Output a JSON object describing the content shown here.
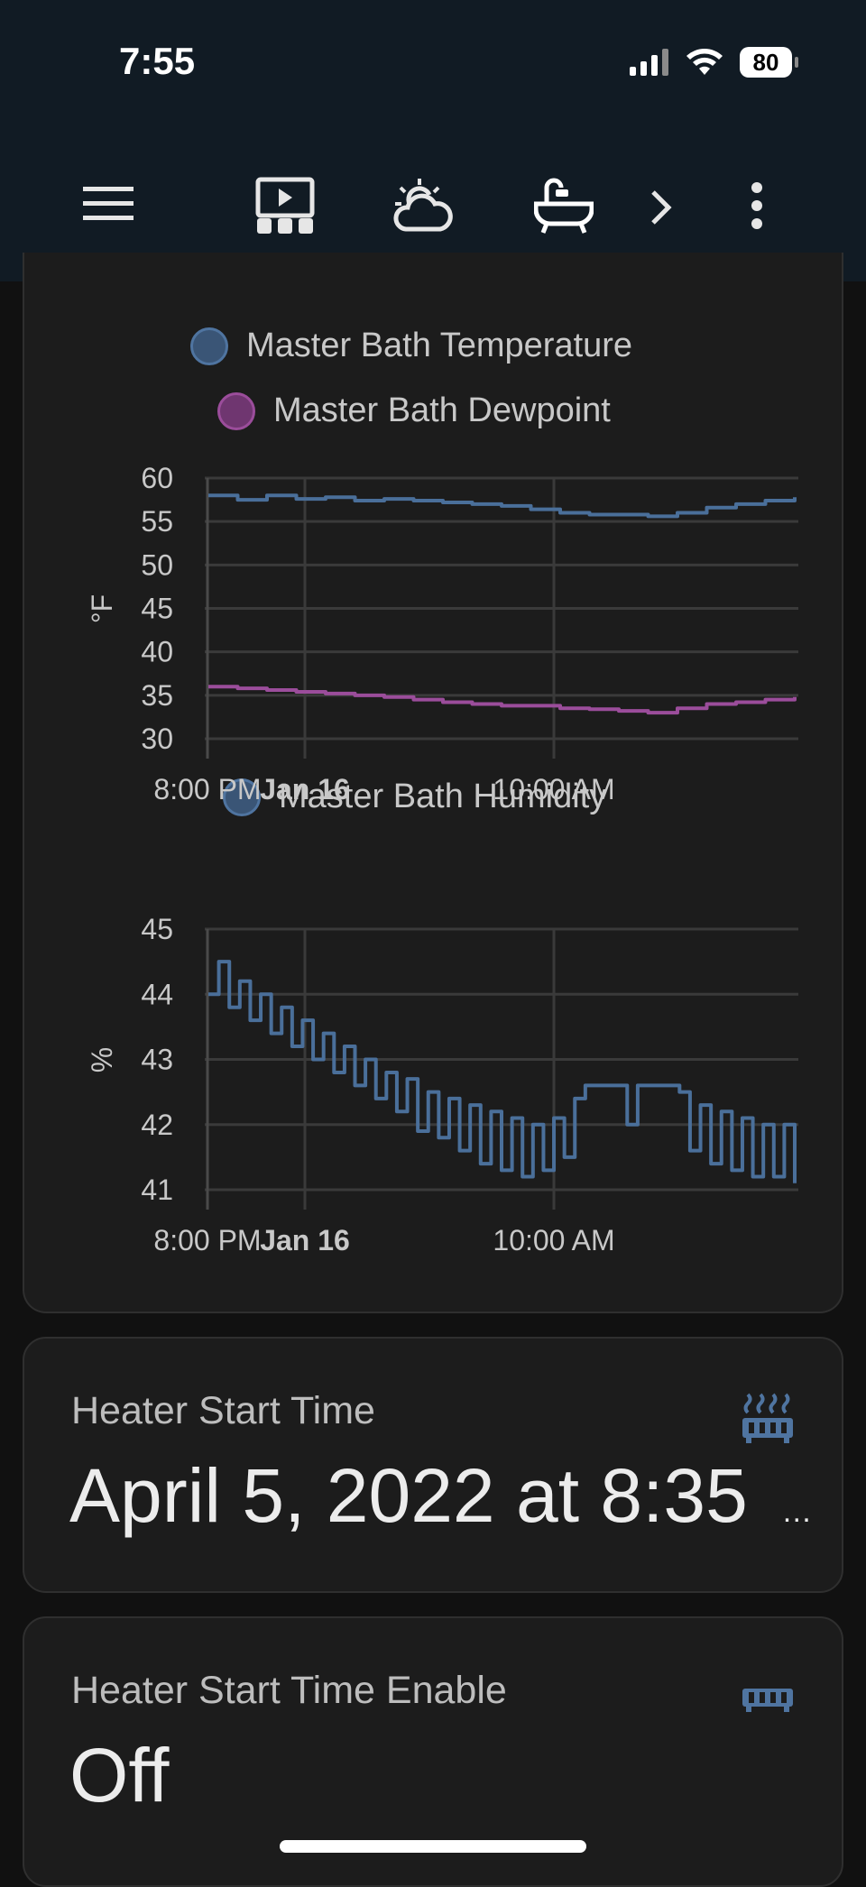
{
  "status_bar": {
    "time": "7:55",
    "battery": "80"
  },
  "toolbar": {
    "icons": [
      "menu-icon",
      "media-icon",
      "weather-icon",
      "bathtub-icon",
      "chevron-right-icon",
      "more-vert-icon"
    ]
  },
  "colors": {
    "temperature": "#4a6f9a",
    "dewpoint": "#9b4d9b",
    "humidity": "#4a6f9a"
  },
  "chart_data": [
    {
      "type": "line",
      "legend": [
        "Master Bath Temperature",
        "Master Bath Dewpoint"
      ],
      "ylabel": "°F",
      "ylim": [
        30,
        60
      ],
      "yticks": [
        "60",
        "55",
        "50",
        "45",
        "40",
        "35",
        "30"
      ],
      "xticks": [
        "8:00 PM",
        "Jan 16",
        "10:00 AM"
      ],
      "series": [
        {
          "name": "Master Bath Temperature",
          "values": [
            58,
            57.5,
            58,
            57.6,
            57.8,
            57.4,
            57.6,
            57.4,
            57.2,
            57,
            56.8,
            56.4,
            56,
            55.8,
            55.8,
            55.6,
            56,
            56.6,
            57,
            57.4,
            57.8
          ]
        },
        {
          "name": "Master Bath Dewpoint",
          "values": [
            36,
            35.8,
            35.6,
            35.4,
            35.2,
            35,
            34.8,
            34.5,
            34.2,
            34,
            33.8,
            33.8,
            33.5,
            33.4,
            33.2,
            33,
            33.5,
            34,
            34.2,
            34.5,
            34.8
          ]
        }
      ]
    },
    {
      "type": "line",
      "legend": [
        "Master Bath Humidity"
      ],
      "ylabel": "%",
      "ylim": [
        41,
        45
      ],
      "yticks": [
        "45",
        "44",
        "43",
        "42",
        "41"
      ],
      "xticks": [
        "8:00 PM",
        "Jan 16",
        "10:00 AM"
      ],
      "series": [
        {
          "name": "Master Bath Humidity",
          "values": [
            44,
            44.5,
            43.8,
            44.2,
            43.6,
            44,
            43.4,
            43.8,
            43.2,
            43.6,
            43,
            43.4,
            42.8,
            43.2,
            42.6,
            43,
            42.4,
            42.8,
            42.2,
            42.7,
            41.9,
            42.5,
            41.8,
            42.4,
            41.6,
            42.3,
            41.4,
            42.2,
            41.3,
            42.1,
            41.2,
            42,
            41.3,
            42.1,
            41.5,
            42.4,
            42.6,
            42.6,
            42.6,
            42.6,
            42,
            42.6,
            42.6,
            42.6,
            42.6,
            42.5,
            41.6,
            42.3,
            41.4,
            42.2,
            41.3,
            42.1,
            41.2,
            42,
            41.2,
            42,
            41.1
          ]
        }
      ]
    }
  ],
  "cards": [
    {
      "name": "Heater Start Time",
      "value": "April 5, 2022 at 8:35",
      "ellipsis": "…"
    },
    {
      "name": "Heater Start Time Enable",
      "value": "Off"
    }
  ]
}
